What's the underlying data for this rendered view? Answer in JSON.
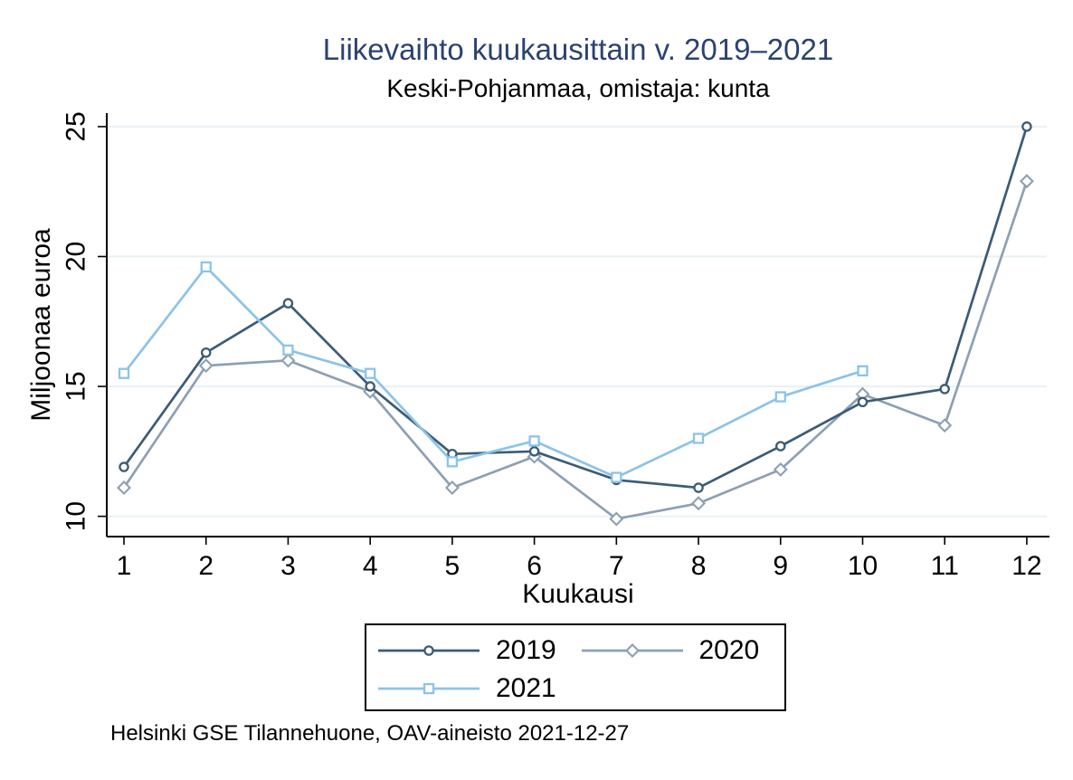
{
  "colors": {
    "title": "#2b4270",
    "axis": "#000000",
    "grid": "#e9f1f6",
    "background": "#ffffff",
    "series_2019": "#3c5c76",
    "series_2020": "#8da0b4",
    "series_2021": "#8cc3e9"
  },
  "chart_data": {
    "type": "line",
    "title": "Liikevaihto kuukausittain v. 2019–2021",
    "subtitle": "Keski-Pohjanmaa, omistaja: kunta",
    "xlabel": "Kuukausi",
    "ylabel": "Miljoonaa euroa",
    "note": "Helsinki GSE Tilannehuone, OAV-aineisto 2021-12-27",
    "x": [
      1,
      2,
      3,
      4,
      5,
      6,
      7,
      8,
      9,
      10,
      11,
      12
    ],
    "yticks": [
      10,
      15,
      20,
      25
    ],
    "ylim": [
      9.2,
      25.5
    ],
    "grid": true,
    "legend_position": "bottom",
    "series": [
      {
        "name": "2019",
        "marker": "circle",
        "color": "#3c5c76",
        "values": [
          11.9,
          16.3,
          18.2,
          15.0,
          12.4,
          12.5,
          11.4,
          11.1,
          12.7,
          14.4,
          14.9,
          25.0
        ]
      },
      {
        "name": "2020",
        "marker": "diamond",
        "color": "#8da0b4",
        "values": [
          11.1,
          15.8,
          16.0,
          14.8,
          11.1,
          12.3,
          9.9,
          10.5,
          11.8,
          14.7,
          13.5,
          22.9
        ]
      },
      {
        "name": "2021",
        "marker": "square",
        "color": "#8cc3e9",
        "values": [
          15.5,
          19.6,
          16.4,
          15.5,
          12.1,
          12.9,
          11.5,
          13.0,
          14.6,
          15.6
        ]
      }
    ]
  }
}
